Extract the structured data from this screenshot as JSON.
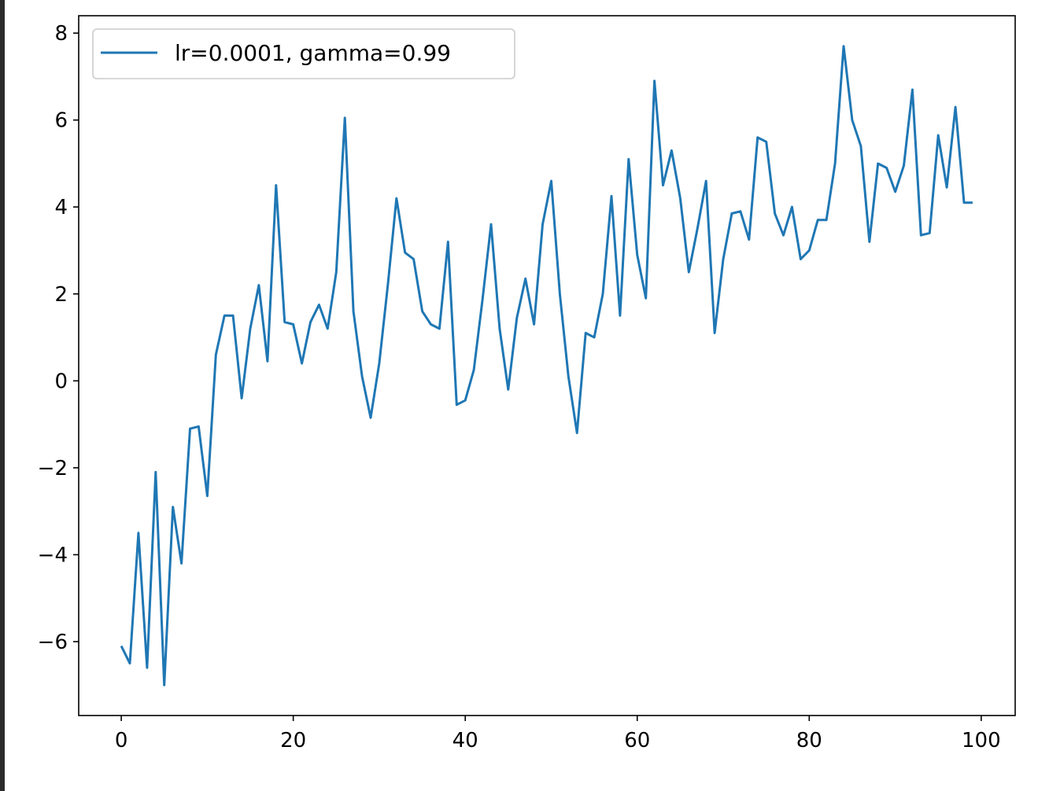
{
  "chart_data": {
    "type": "line",
    "title": "",
    "xlabel": "",
    "ylabel": "",
    "xlim": [
      -4.95,
      103.95
    ],
    "ylim": [
      -7.7,
      8.4
    ],
    "x_ticks": [
      0,
      20,
      40,
      60,
      80,
      100
    ],
    "y_ticks": [
      -6,
      -4,
      -2,
      0,
      2,
      4,
      6,
      8
    ],
    "grid": false,
    "legend_position": "top-left",
    "colors": {
      "series": "#1f77b4",
      "axes": "#000000",
      "background": "#ffffff"
    },
    "series": [
      {
        "name": "lr=0.0001, gamma=0.99",
        "x": [
          0,
          1,
          2,
          3,
          4,
          5,
          6,
          7,
          8,
          9,
          10,
          11,
          12,
          13,
          14,
          15,
          16,
          17,
          18,
          19,
          20,
          21,
          22,
          23,
          24,
          25,
          26,
          27,
          28,
          29,
          30,
          31,
          32,
          33,
          34,
          35,
          36,
          37,
          38,
          39,
          40,
          41,
          42,
          43,
          44,
          45,
          46,
          47,
          48,
          49,
          50,
          51,
          52,
          53,
          54,
          55,
          56,
          57,
          58,
          59,
          60,
          61,
          62,
          63,
          64,
          65,
          66,
          67,
          68,
          69,
          70,
          71,
          72,
          73,
          74,
          75,
          76,
          77,
          78,
          79,
          80,
          81,
          82,
          83,
          84,
          85,
          86,
          87,
          88,
          89,
          90,
          91,
          92,
          93,
          94,
          95,
          96,
          97,
          98,
          99
        ],
        "values": [
          -6.1,
          -6.5,
          -3.5,
          -6.6,
          -2.1,
          -7.0,
          -2.9,
          -4.2,
          -1.1,
          -1.05,
          -2.65,
          0.6,
          1.5,
          1.5,
          -0.4,
          1.2,
          2.2,
          0.45,
          4.5,
          1.35,
          1.3,
          0.4,
          1.35,
          1.75,
          1.2,
          2.5,
          6.05,
          1.6,
          0.1,
          -0.85,
          0.4,
          2.2,
          4.2,
          2.95,
          2.8,
          1.6,
          1.3,
          1.2,
          3.2,
          -0.55,
          -0.45,
          0.25,
          1.85,
          3.6,
          1.2,
          -0.2,
          1.45,
          2.35,
          1.3,
          3.6,
          4.6,
          2.0,
          0.1,
          -1.2,
          1.1,
          1.0,
          2.0,
          4.25,
          1.5,
          5.1,
          2.9,
          1.9,
          6.9,
          4.5,
          5.3,
          4.2,
          2.5,
          3.5,
          4.6,
          1.1,
          2.8,
          3.85,
          3.9,
          3.25,
          5.6,
          5.5,
          3.85,
          3.35,
          4.0,
          2.8,
          3.0,
          3.7,
          3.7,
          5.0,
          7.7,
          6.0,
          5.4,
          3.2,
          5.0,
          4.9,
          4.35,
          4.95,
          6.7,
          3.35,
          3.4,
          5.65,
          4.45,
          6.3,
          4.1,
          4.1
        ]
      }
    ]
  }
}
